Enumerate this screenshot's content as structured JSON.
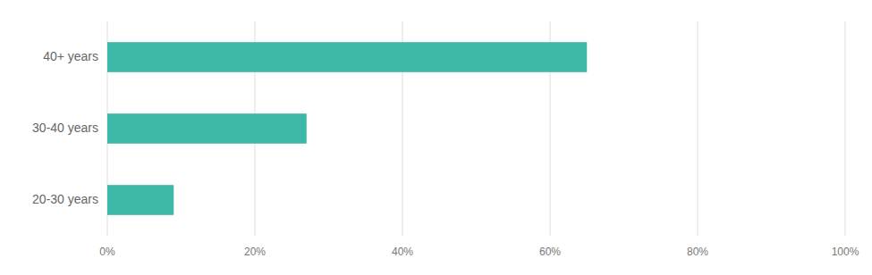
{
  "chart_data": {
    "type": "bar",
    "orientation": "horizontal",
    "categories": [
      "20-30 years",
      "30-40 years",
      "40+ years"
    ],
    "values": [
      9,
      27,
      65
    ],
    "color": "#3cb8a9",
    "xlim": [
      0,
      100
    ],
    "xticks": [
      {
        "value": 0,
        "label": "0%"
      },
      {
        "value": 20,
        "label": "20%"
      },
      {
        "value": 40,
        "label": "40%"
      },
      {
        "value": 60,
        "label": "60%"
      },
      {
        "value": 80,
        "label": "80%"
      },
      {
        "value": 100,
        "label": "100%"
      }
    ],
    "grid": true
  }
}
